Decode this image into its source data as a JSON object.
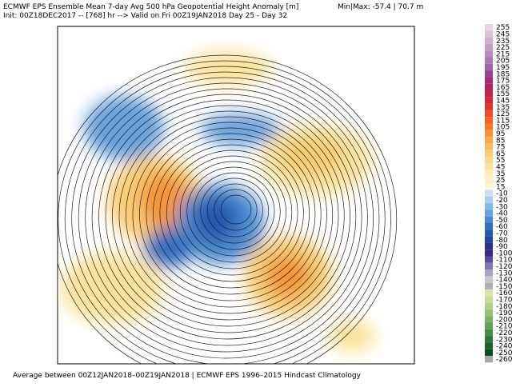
{
  "header": {
    "title": "ECMWF EPS Ensemble Mean 7-day Avg 500 hPa Geopotential Height Anomaly [m]",
    "init": "Init: 00Z18DEC2017 -- [768] hr --> Valid on Fri 00Z19JAN2018  Day 25 - Day 32",
    "minmax": "Min|Max: -57.4 | 70.7 m"
  },
  "footer": "Average between 00Z12JAN2018–00Z19JAN2018 | ECMWF EPS 1996–2015 Hindcast Climatology",
  "colorbar": {
    "labels": [
      255,
      245,
      235,
      225,
      215,
      205,
      195,
      185,
      175,
      165,
      155,
      145,
      135,
      125,
      115,
      105,
      95,
      85,
      75,
      65,
      55,
      45,
      35,
      25,
      15,
      -10,
      -20,
      -30,
      -40,
      -50,
      -60,
      -70,
      -80,
      -90,
      -100,
      -110,
      -120,
      -130,
      -140,
      -150,
      -160,
      -170,
      -180,
      -190,
      -200,
      -210,
      -220,
      -230,
      -240,
      -250,
      -260
    ],
    "colors": [
      "#e6d6e2",
      "#dcc4d8",
      "#d2b0d0",
      "#c89cc8",
      "#bc88be",
      "#b074b4",
      "#a460a8",
      "#983f98",
      "#a02c7c",
      "#b02660",
      "#c02446",
      "#d0283a",
      "#e03430",
      "#e84c2a",
      "#ef6428",
      "#f27c2c",
      "#f49438",
      "#f6a94a",
      "#f8bc5e",
      "#f9cc74",
      "#fad98a",
      "#fbe39e",
      "#fcebb2",
      "#fdf1c4",
      "#fef6d6",
      "#c6e0f4",
      "#a8cdee",
      "#88b8e6",
      "#6aa2dc",
      "#4c8ad0",
      "#3470c2",
      "#2658b0",
      "#22449c",
      "#283488",
      "#3a2c84",
      "#5c4c9a",
      "#8478b0",
      "#aaa4c4",
      "#c4c4cc",
      "#b0b0b0",
      "#d8e6ac",
      "#c6dc98",
      "#b0d286",
      "#96c474",
      "#7cb464",
      "#60a256",
      "#448e48",
      "#2c7a3a",
      "#186430",
      "#0c4e24",
      "#a8a8a8"
    ]
  }
}
